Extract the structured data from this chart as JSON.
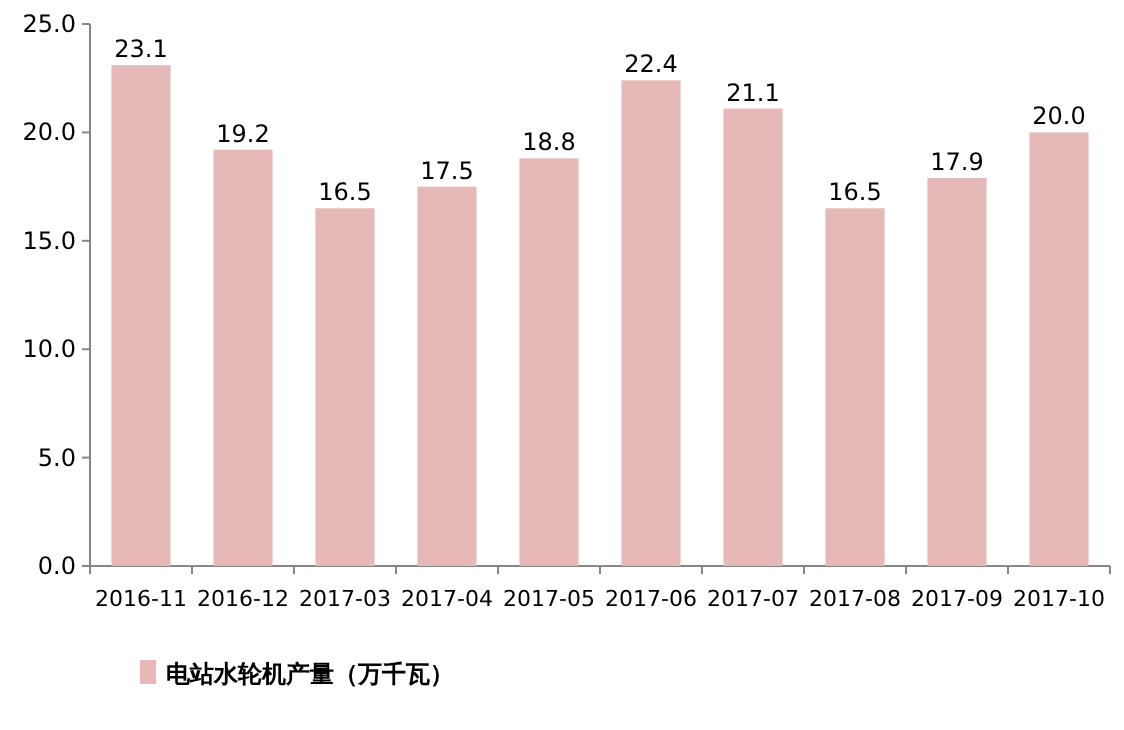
{
  "chart_data": {
    "type": "bar",
    "categories": [
      "2016-11",
      "2016-12",
      "2017-03",
      "2017-04",
      "2017-05",
      "2017-06",
      "2017-07",
      "2017-08",
      "2017-09",
      "2017-10"
    ],
    "series": [
      {
        "name": "电站水轮机产量（万千瓦）",
        "color": "#e6b8b7",
        "values": [
          23.1,
          19.2,
          16.5,
          17.5,
          18.8,
          22.4,
          21.1,
          16.5,
          17.9,
          20.0
        ],
        "value_labels": [
          "23.1",
          "19.2",
          "16.5",
          "17.5",
          "18.8",
          "22.4",
          "21.1",
          "16.5",
          "17.9",
          "20.0"
        ]
      }
    ],
    "ylim": [
      0,
      25
    ],
    "yticks": [
      {
        "value": 0,
        "label": "0.0"
      },
      {
        "value": 5,
        "label": "5.0"
      },
      {
        "value": 10,
        "label": "10.0"
      },
      {
        "value": 15,
        "label": "15.0"
      },
      {
        "value": 20,
        "label": "20.0"
      },
      {
        "value": 25,
        "label": "25.0"
      }
    ],
    "legend": "bottom"
  }
}
